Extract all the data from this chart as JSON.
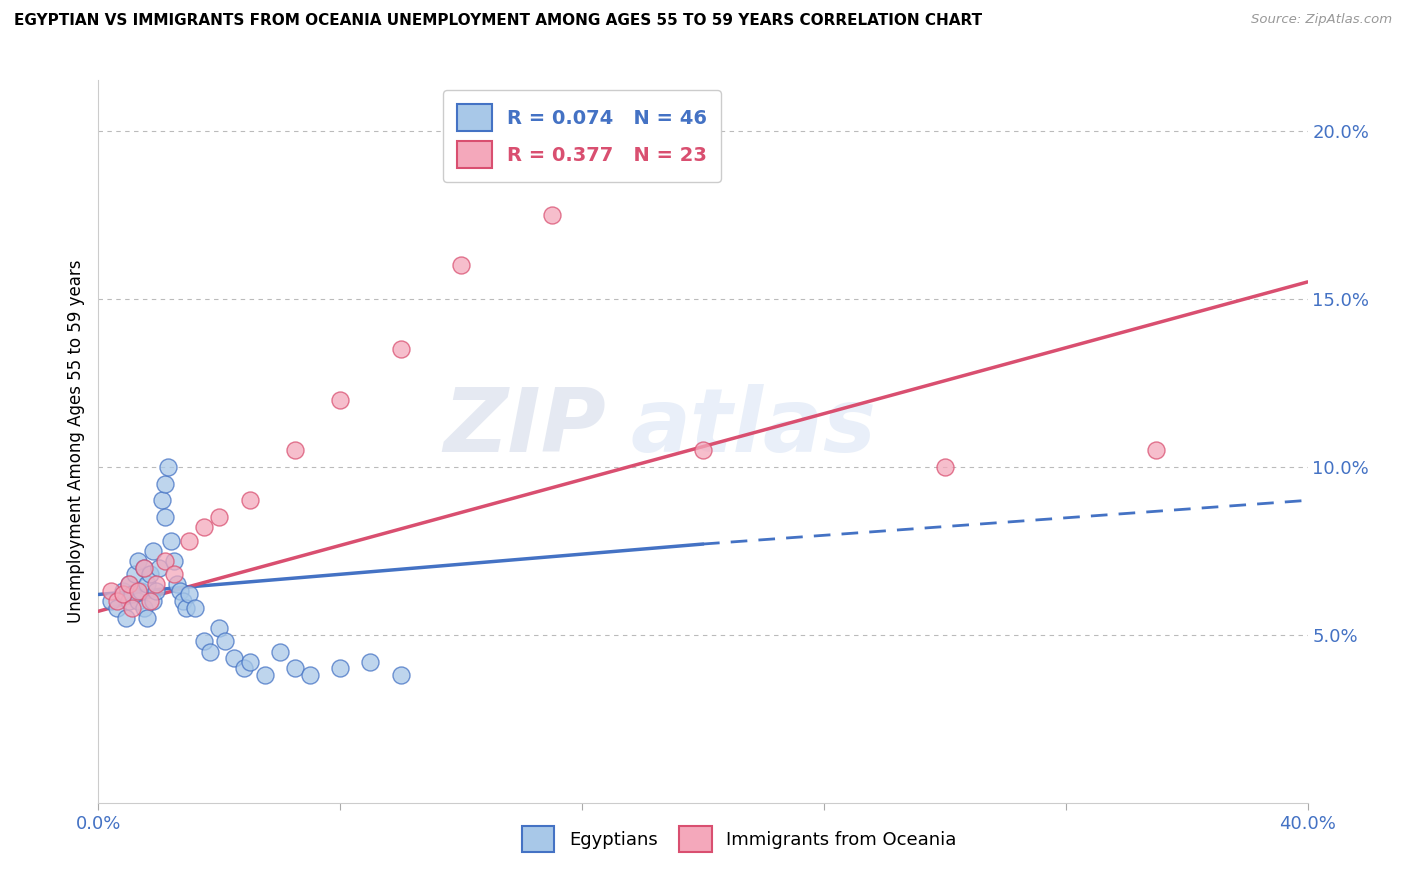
{
  "title": "EGYPTIAN VS IMMIGRANTS FROM OCEANIA UNEMPLOYMENT AMONG AGES 55 TO 59 YEARS CORRELATION CHART",
  "source": "Source: ZipAtlas.com",
  "ylabel": "Unemployment Among Ages 55 to 59 years",
  "xlim": [
    0.0,
    0.4
  ],
  "ylim": [
    0.0,
    0.215
  ],
  "xticks": [
    0.0,
    0.08,
    0.16,
    0.24,
    0.32,
    0.4
  ],
  "xticklabels": [
    "0.0%",
    "",
    "",
    "",
    "",
    "40.0%"
  ],
  "ytick_positions": [
    0.05,
    0.1,
    0.15,
    0.2
  ],
  "yticklabels": [
    "5.0%",
    "10.0%",
    "15.0%",
    "20.0%"
  ],
  "r_egyptian": 0.074,
  "n_egyptian": 46,
  "r_oceania": 0.377,
  "n_oceania": 23,
  "color_egyptian": "#a8c8e8",
  "color_oceania": "#f4a8bb",
  "color_line_egyptian": "#4472c4",
  "color_line_oceania": "#d94f70",
  "background_color": "#ffffff",
  "watermark_zip": "ZIP",
  "watermark_atlas": "atlas",
  "egyptians_x": [
    0.004,
    0.006,
    0.008,
    0.009,
    0.01,
    0.01,
    0.011,
    0.012,
    0.013,
    0.013,
    0.014,
    0.015,
    0.015,
    0.016,
    0.016,
    0.017,
    0.018,
    0.018,
    0.019,
    0.02,
    0.021,
    0.022,
    0.022,
    0.023,
    0.024,
    0.025,
    0.026,
    0.027,
    0.028,
    0.029,
    0.03,
    0.032,
    0.035,
    0.037,
    0.04,
    0.042,
    0.045,
    0.048,
    0.05,
    0.055,
    0.06,
    0.065,
    0.07,
    0.08,
    0.09,
    0.1
  ],
  "egyptians_y": [
    0.06,
    0.058,
    0.063,
    0.055,
    0.065,
    0.06,
    0.062,
    0.068,
    0.06,
    0.072,
    0.063,
    0.058,
    0.07,
    0.065,
    0.055,
    0.068,
    0.075,
    0.06,
    0.063,
    0.07,
    0.09,
    0.085,
    0.095,
    0.1,
    0.078,
    0.072,
    0.065,
    0.063,
    0.06,
    0.058,
    0.062,
    0.058,
    0.048,
    0.045,
    0.052,
    0.048,
    0.043,
    0.04,
    0.042,
    0.038,
    0.045,
    0.04,
    0.038,
    0.04,
    0.042,
    0.038
  ],
  "oceania_x": [
    0.004,
    0.006,
    0.008,
    0.01,
    0.011,
    0.013,
    0.015,
    0.017,
    0.019,
    0.022,
    0.025,
    0.03,
    0.035,
    0.04,
    0.05,
    0.065,
    0.08,
    0.1,
    0.12,
    0.15,
    0.2,
    0.28,
    0.35
  ],
  "oceania_y": [
    0.063,
    0.06,
    0.062,
    0.065,
    0.058,
    0.063,
    0.07,
    0.06,
    0.065,
    0.072,
    0.068,
    0.078,
    0.082,
    0.085,
    0.09,
    0.105,
    0.12,
    0.135,
    0.16,
    0.175,
    0.105,
    0.1,
    0.105
  ],
  "trend_e_x0": 0.0,
  "trend_e_y0": 0.062,
  "trend_e_x1_solid": 0.2,
  "trend_e_y1_solid": 0.077,
  "trend_e_x2": 0.4,
  "trend_e_y2": 0.09,
  "trend_o_x0": 0.0,
  "trend_o_y0": 0.057,
  "trend_o_x1": 0.4,
  "trend_o_y1": 0.155
}
